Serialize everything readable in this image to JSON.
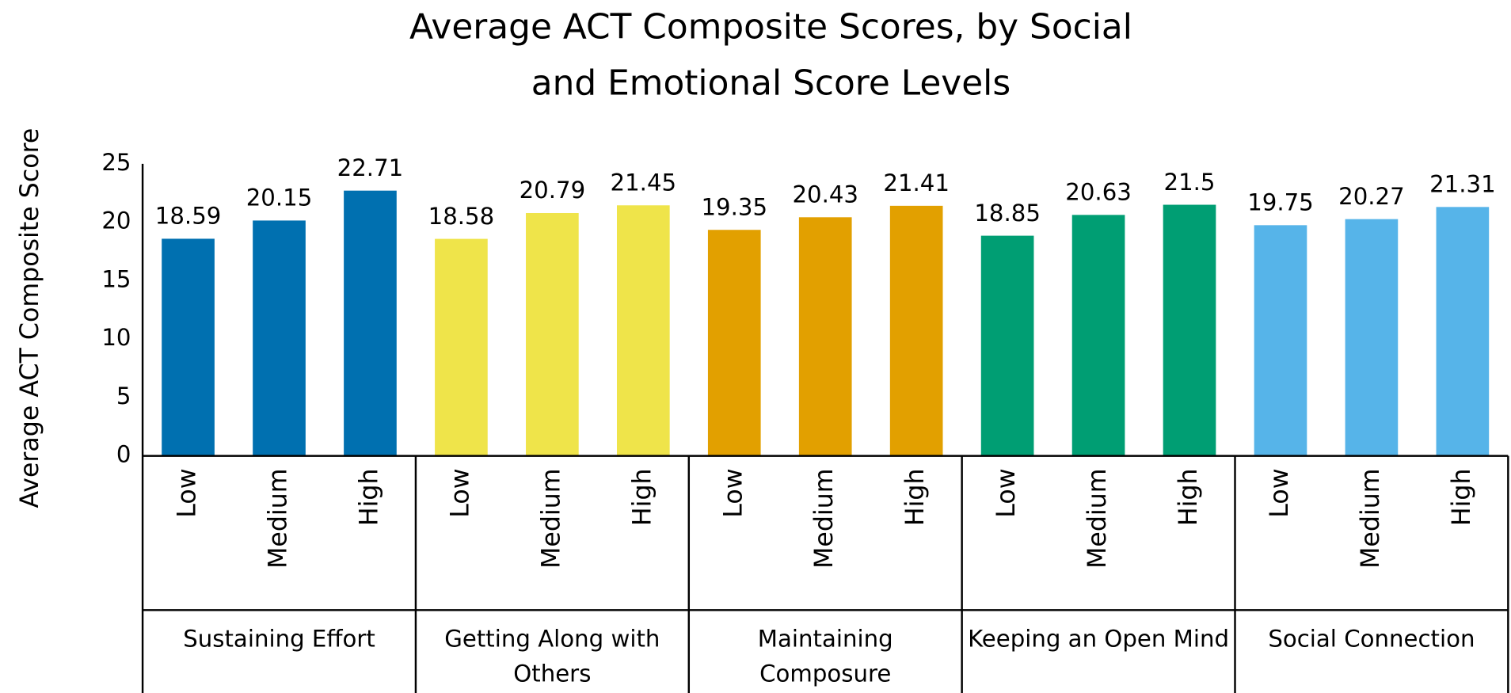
{
  "chart_data": {
    "type": "bar",
    "title": "Average ACT Composite Scores, by Social and Emotional Score Levels",
    "y_label": "Average ACT Composite Score",
    "ylim": [
      0,
      25
    ],
    "yticks": [
      0,
      5,
      10,
      15,
      20,
      25
    ],
    "groups": [
      {
        "name": "Sustaining Effort",
        "color": "#0070b0",
        "categories": [
          "Low",
          "Medium",
          "High"
        ],
        "values": [
          18.59,
          20.15,
          22.71
        ]
      },
      {
        "name": "Getting Along with Others",
        "color": "#efe44a",
        "categories": [
          "Low",
          "Medium",
          "High"
        ],
        "values": [
          18.58,
          20.79,
          21.45
        ]
      },
      {
        "name": "Maintaining Composure",
        "color": "#e2a000",
        "categories": [
          "Low",
          "Medium",
          "High"
        ],
        "values": [
          19.35,
          20.43,
          21.41
        ]
      },
      {
        "name": "Keeping an Open Mind",
        "color": "#009e73",
        "categories": [
          "Low",
          "Medium",
          "High"
        ],
        "values": [
          18.85,
          20.63,
          21.5
        ]
      },
      {
        "name": "Social Connection",
        "color": "#56b4e9",
        "categories": [
          "Low",
          "Medium",
          "High"
        ],
        "values": [
          19.75,
          20.27,
          21.31
        ]
      }
    ]
  }
}
